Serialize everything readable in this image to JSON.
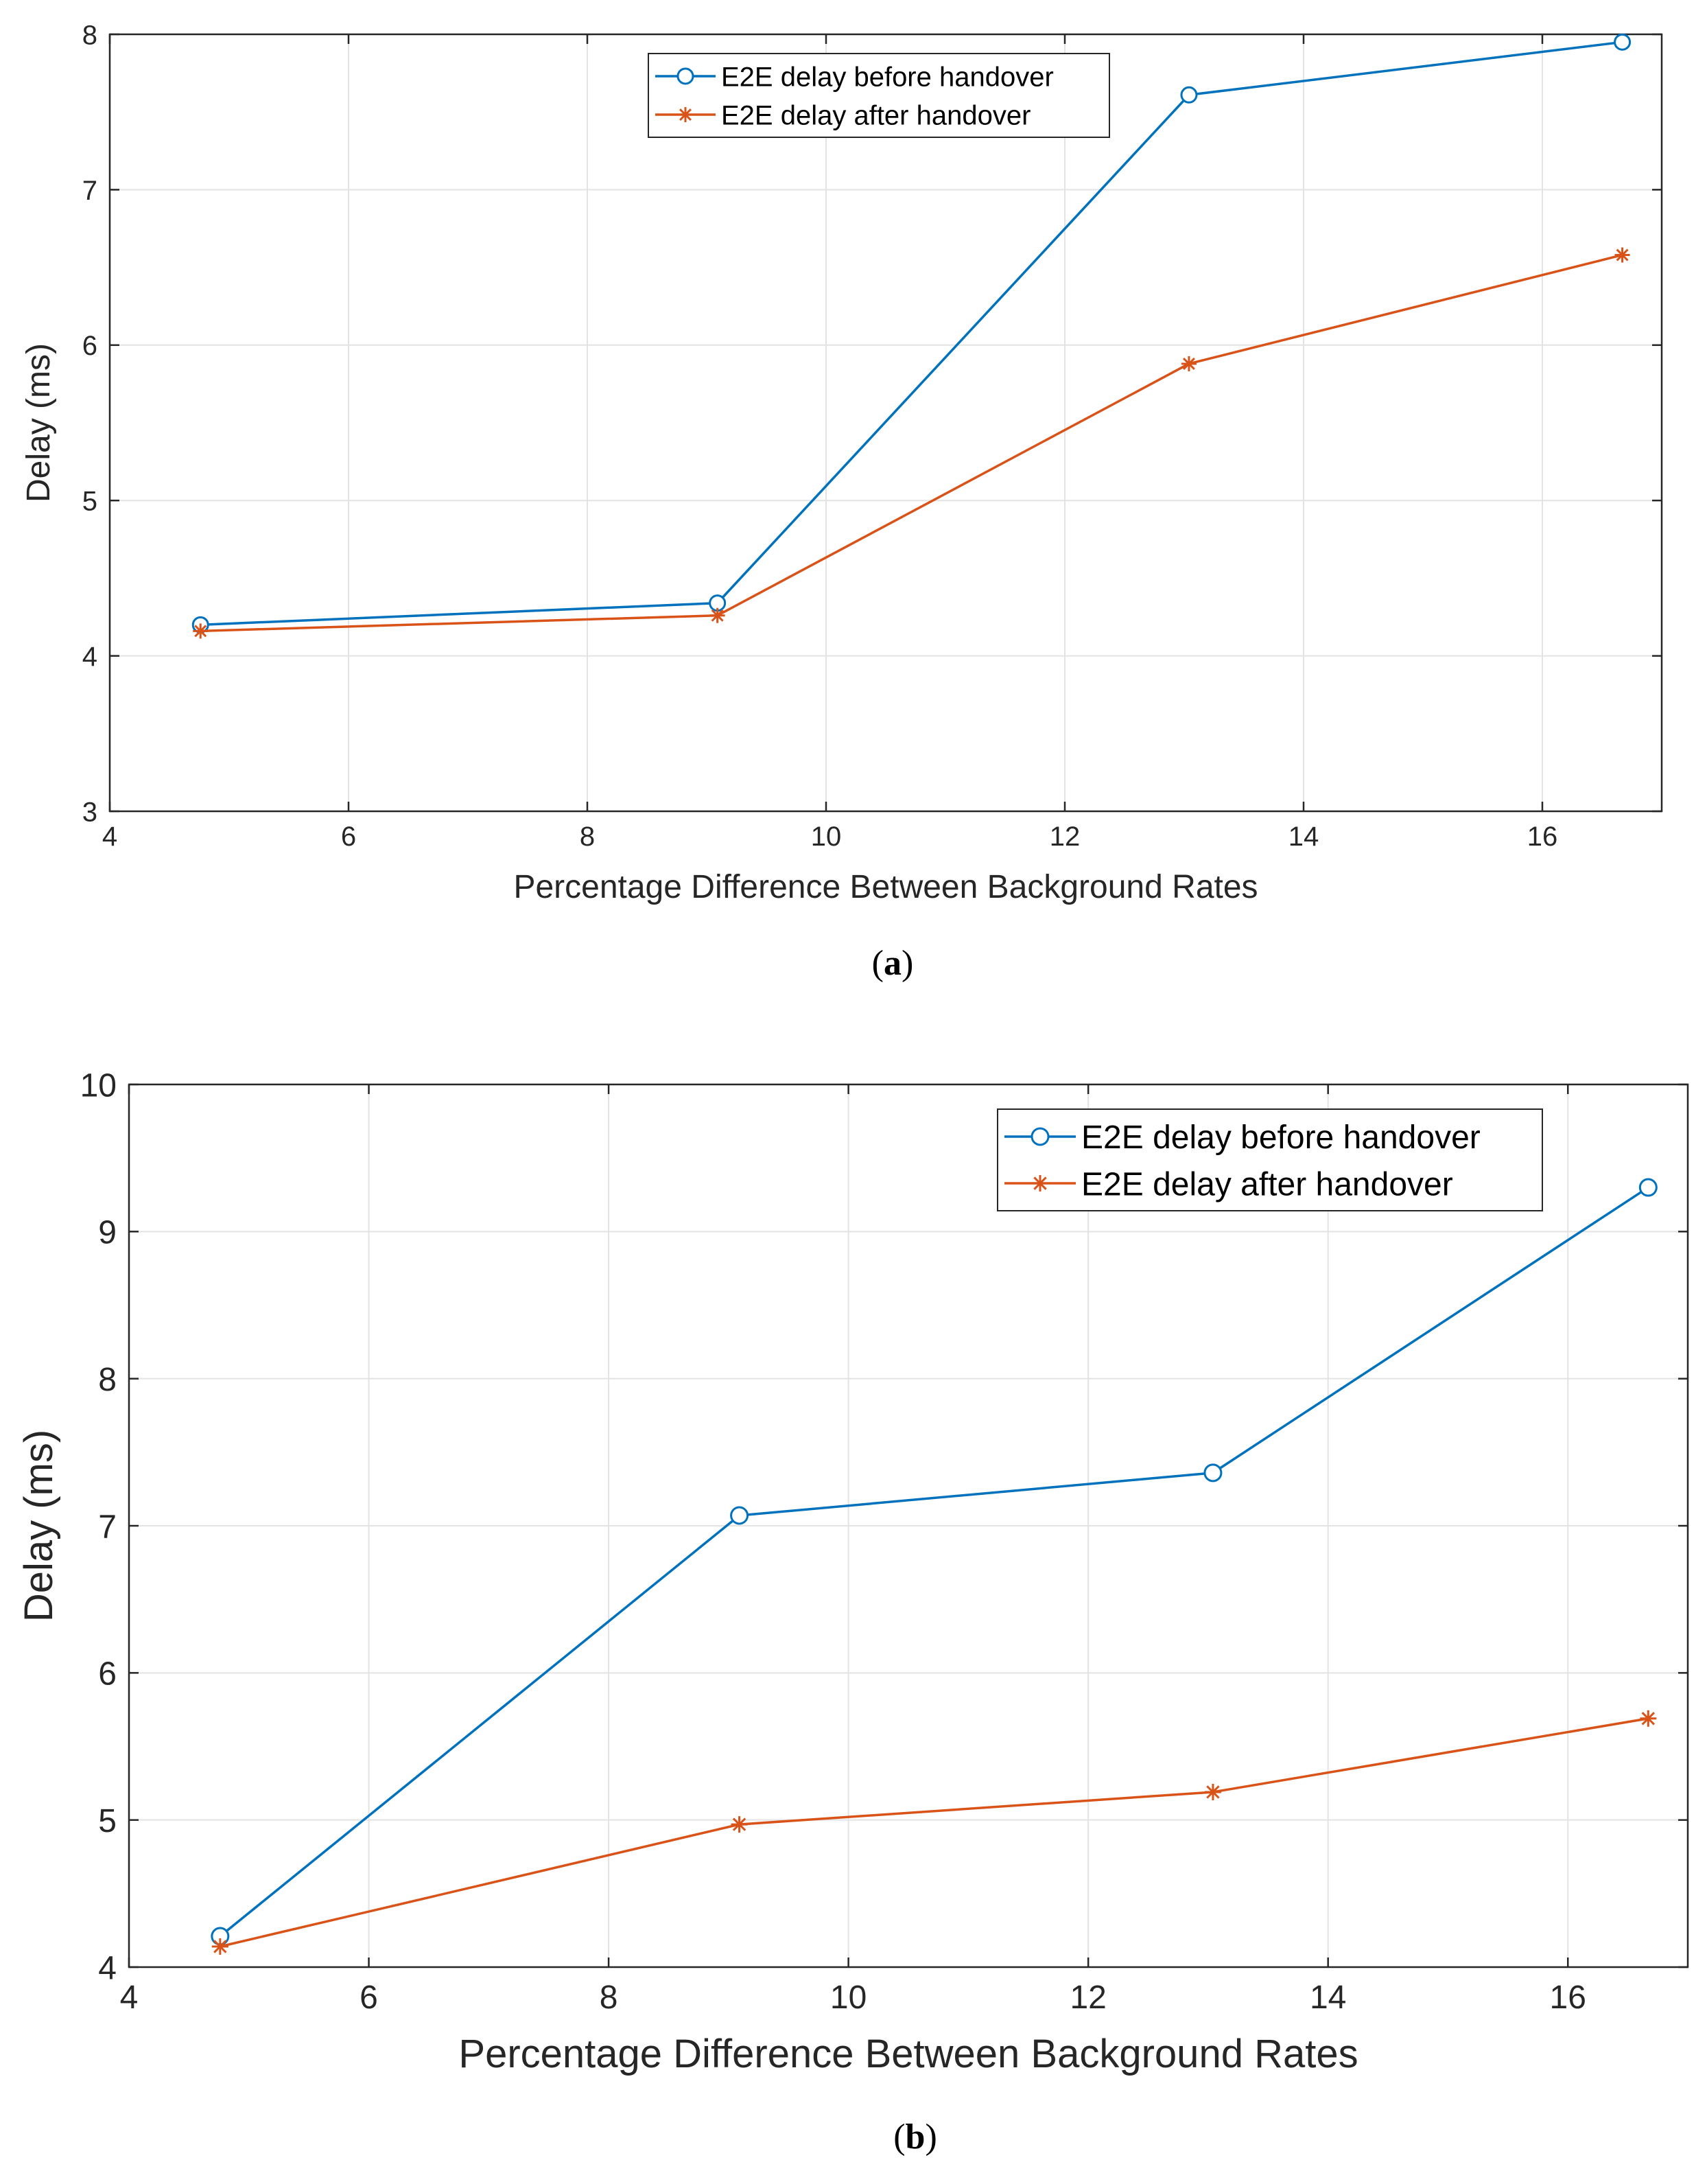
{
  "chart_data": [
    {
      "type": "line",
      "caption": "(a)",
      "caption_letter": "a",
      "xlabel": "Percentage Difference Between Background Rates",
      "ylabel": "Delay (ms)",
      "xlim": [
        4,
        17
      ],
      "ylim": [
        3,
        8
      ],
      "xticks": [
        4,
        6,
        8,
        10,
        12,
        14,
        16
      ],
      "yticks": [
        3,
        4,
        5,
        6,
        7,
        8
      ],
      "grid": true,
      "legend_position": "top-center",
      "x": [
        4.76,
        9.09,
        13.04,
        16.67
      ],
      "series": [
        {
          "name": "E2E delay before handover",
          "color": "#0072BD",
          "marker": "circle",
          "values": [
            4.2,
            4.34,
            7.61,
            7.95
          ]
        },
        {
          "name": "E2E delay after handover",
          "color": "#D95319",
          "marker": "asterisk",
          "values": [
            4.16,
            4.26,
            5.88,
            6.58
          ]
        }
      ]
    },
    {
      "type": "line",
      "caption": "(b)",
      "caption_letter": "b",
      "xlabel": "Percentage Difference Between Background Rates",
      "ylabel": "Delay (ms)",
      "xlim": [
        4,
        17
      ],
      "ylim": [
        4,
        10
      ],
      "xticks": [
        4,
        6,
        8,
        10,
        12,
        14,
        16
      ],
      "yticks": [
        4,
        5,
        6,
        7,
        8,
        9,
        10
      ],
      "grid": true,
      "legend_position": "top-right",
      "x": [
        4.76,
        9.09,
        13.04,
        16.67
      ],
      "series": [
        {
          "name": "E2E delay before handover",
          "color": "#0072BD",
          "marker": "circle",
          "values": [
            4.21,
            7.07,
            7.36,
            9.3
          ]
        },
        {
          "name": "E2E delay after handover",
          "color": "#D95319",
          "marker": "asterisk",
          "values": [
            4.14,
            4.97,
            5.19,
            5.69
          ]
        }
      ]
    }
  ]
}
